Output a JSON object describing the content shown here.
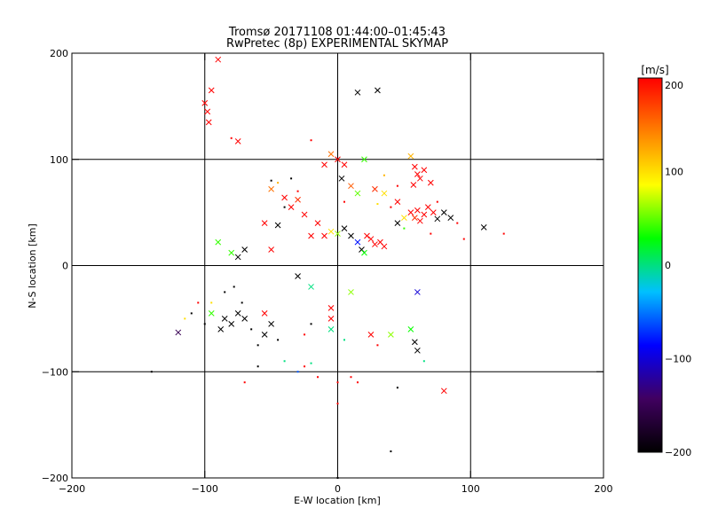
{
  "chart_data": {
    "type": "scatter",
    "title": "Tromsø 20171108 01:44:00–01:45:43",
    "subtitle": "RwPretec (8p) EXPERIMENTAL SKYMAP",
    "xlabel": "E-W location [km]",
    "ylabel": "N-S location [km]",
    "xlim": [
      -200,
      200
    ],
    "ylim": [
      -200,
      200
    ],
    "xticks": [
      -200,
      -100,
      0,
      100,
      200
    ],
    "yticks": [
      -200,
      -100,
      0,
      100,
      200
    ],
    "grid": true,
    "colorbar": {
      "title": "[m/s]",
      "range": [
        -200,
        200
      ],
      "ticks": [
        -200,
        -100,
        0,
        100,
        200
      ],
      "colors": [
        "#000000",
        "#400060",
        "#0000ff",
        "#00c0ff",
        "#00ff00",
        "#ffff00",
        "#ff8000",
        "#ff0000"
      ]
    },
    "series": [
      {
        "marker": "x",
        "points": [
          {
            "x": -90,
            "y": 194,
            "v": 200
          },
          {
            "x": -95,
            "y": 165,
            "v": 200
          },
          {
            "x": -100,
            "y": 153,
            "v": 200
          },
          {
            "x": -98,
            "y": 145,
            "v": 200
          },
          {
            "x": -97,
            "y": 135,
            "v": 200
          },
          {
            "x": -75,
            "y": 117,
            "v": 200
          },
          {
            "x": 15,
            "y": 163,
            "v": -200
          },
          {
            "x": 30,
            "y": 165,
            "v": -200
          },
          {
            "x": -5,
            "y": 105,
            "v": 150
          },
          {
            "x": 0,
            "y": 100,
            "v": 200
          },
          {
            "x": 5,
            "y": 95,
            "v": 200
          },
          {
            "x": 20,
            "y": 100,
            "v": 40
          },
          {
            "x": -10,
            "y": 95,
            "v": 200
          },
          {
            "x": 3,
            "y": 82,
            "v": -200
          },
          {
            "x": 10,
            "y": 75,
            "v": 160
          },
          {
            "x": 15,
            "y": 68,
            "v": 50
          },
          {
            "x": 28,
            "y": 72,
            "v": 180
          },
          {
            "x": 35,
            "y": 68,
            "v": 100
          },
          {
            "x": 55,
            "y": 103,
            "v": 120
          },
          {
            "x": 58,
            "y": 93,
            "v": 200
          },
          {
            "x": 60,
            "y": 86,
            "v": 200
          },
          {
            "x": 62,
            "y": 82,
            "v": 200
          },
          {
            "x": 65,
            "y": 90,
            "v": 200
          },
          {
            "x": 57,
            "y": 76,
            "v": 200
          },
          {
            "x": 70,
            "y": 78,
            "v": 200
          },
          {
            "x": 45,
            "y": 60,
            "v": 200
          },
          {
            "x": 55,
            "y": 50,
            "v": 200
          },
          {
            "x": 58,
            "y": 45,
            "v": 180
          },
          {
            "x": 60,
            "y": 52,
            "v": 200
          },
          {
            "x": 65,
            "y": 48,
            "v": 200
          },
          {
            "x": 68,
            "y": 55,
            "v": 200
          },
          {
            "x": 72,
            "y": 50,
            "v": 200
          },
          {
            "x": 62,
            "y": 42,
            "v": 200
          },
          {
            "x": 50,
            "y": 45,
            "v": 100
          },
          {
            "x": 45,
            "y": 40,
            "v": -200
          },
          {
            "x": 75,
            "y": 44,
            "v": -200
          },
          {
            "x": 80,
            "y": 50,
            "v": -200
          },
          {
            "x": 85,
            "y": 45,
            "v": -200
          },
          {
            "x": 110,
            "y": 36,
            "v": -200
          },
          {
            "x": -50,
            "y": 72,
            "v": 150
          },
          {
            "x": -40,
            "y": 64,
            "v": 200
          },
          {
            "x": -35,
            "y": 55,
            "v": 200
          },
          {
            "x": -30,
            "y": 62,
            "v": 180
          },
          {
            "x": -25,
            "y": 48,
            "v": 200
          },
          {
            "x": -45,
            "y": 38,
            "v": -200
          },
          {
            "x": -55,
            "y": 40,
            "v": 200
          },
          {
            "x": -15,
            "y": 40,
            "v": 200
          },
          {
            "x": -20,
            "y": 28,
            "v": 200
          },
          {
            "x": -10,
            "y": 28,
            "v": 200
          },
          {
            "x": -5,
            "y": 32,
            "v": 100
          },
          {
            "x": 0,
            "y": 30,
            "v": 60
          },
          {
            "x": 5,
            "y": 35,
            "v": -200
          },
          {
            "x": 10,
            "y": 28,
            "v": -200
          },
          {
            "x": 15,
            "y": 22,
            "v": -80
          },
          {
            "x": 18,
            "y": 15,
            "v": -200
          },
          {
            "x": 20,
            "y": 12,
            "v": 30
          },
          {
            "x": 25,
            "y": 25,
            "v": 200
          },
          {
            "x": 28,
            "y": 20,
            "v": 200
          },
          {
            "x": 32,
            "y": 22,
            "v": 200
          },
          {
            "x": 35,
            "y": 18,
            "v": 200
          },
          {
            "x": 22,
            "y": 28,
            "v": 200
          },
          {
            "x": -90,
            "y": 22,
            "v": 40
          },
          {
            "x": -80,
            "y": 12,
            "v": 40
          },
          {
            "x": -75,
            "y": 8,
            "v": -200
          },
          {
            "x": -70,
            "y": 15,
            "v": -200
          },
          {
            "x": -50,
            "y": 15,
            "v": 200
          },
          {
            "x": -30,
            "y": -10,
            "v": -200
          },
          {
            "x": -20,
            "y": -20,
            "v": 0
          },
          {
            "x": -5,
            "y": -40,
            "v": 200
          },
          {
            "x": -5,
            "y": -50,
            "v": 200
          },
          {
            "x": 10,
            "y": -25,
            "v": 60
          },
          {
            "x": 60,
            "y": -25,
            "v": -100
          },
          {
            "x": -80,
            "y": -55,
            "v": -200
          },
          {
            "x": -85,
            "y": -50,
            "v": -200
          },
          {
            "x": -75,
            "y": -45,
            "v": -200
          },
          {
            "x": -70,
            "y": -50,
            "v": -200
          },
          {
            "x": -88,
            "y": -60,
            "v": -200
          },
          {
            "x": -120,
            "y": -63,
            "v": -150
          },
          {
            "x": -95,
            "y": -45,
            "v": 40
          },
          {
            "x": -55,
            "y": -45,
            "v": 200
          },
          {
            "x": -50,
            "y": -55,
            "v": -200
          },
          {
            "x": -55,
            "y": -65,
            "v": -200
          },
          {
            "x": -5,
            "y": -60,
            "v": 0
          },
          {
            "x": 25,
            "y": -65,
            "v": 200
          },
          {
            "x": 40,
            "y": -65,
            "v": 60
          },
          {
            "x": 55,
            "y": -60,
            "v": 30
          },
          {
            "x": 58,
            "y": -72,
            "v": -200
          },
          {
            "x": 60,
            "y": -80,
            "v": -200
          },
          {
            "x": 80,
            "y": -118,
            "v": 200
          }
        ]
      },
      {
        "marker": "dot",
        "points": [
          {
            "x": -80,
            "y": 120,
            "v": 200
          },
          {
            "x": -20,
            "y": 118,
            "v": 200
          },
          {
            "x": -50,
            "y": 80,
            "v": -200
          },
          {
            "x": -45,
            "y": 78,
            "v": 120
          },
          {
            "x": -35,
            "y": 82,
            "v": -200
          },
          {
            "x": -30,
            "y": 70,
            "v": 200
          },
          {
            "x": -40,
            "y": 55,
            "v": -200
          },
          {
            "x": 5,
            "y": 60,
            "v": 200
          },
          {
            "x": 30,
            "y": 58,
            "v": 100
          },
          {
            "x": 40,
            "y": 55,
            "v": 200
          },
          {
            "x": 90,
            "y": 40,
            "v": 200
          },
          {
            "x": 95,
            "y": 25,
            "v": 200
          },
          {
            "x": 125,
            "y": 30,
            "v": 200
          },
          {
            "x": -110,
            "y": -45,
            "v": -200
          },
          {
            "x": -105,
            "y": -35,
            "v": 200
          },
          {
            "x": -115,
            "y": -50,
            "v": 100
          },
          {
            "x": -100,
            "y": -55,
            "v": -200
          },
          {
            "x": -95,
            "y": -35,
            "v": 100
          },
          {
            "x": -78,
            "y": -20,
            "v": -200
          },
          {
            "x": -85,
            "y": -25,
            "v": -200
          },
          {
            "x": -72,
            "y": -35,
            "v": -200
          },
          {
            "x": -65,
            "y": -60,
            "v": -200
          },
          {
            "x": -60,
            "y": -75,
            "v": -200
          },
          {
            "x": -45,
            "y": -70,
            "v": -200
          },
          {
            "x": -40,
            "y": -90,
            "v": 0
          },
          {
            "x": -30,
            "y": -100,
            "v": -60
          },
          {
            "x": -25,
            "y": -95,
            "v": 200
          },
          {
            "x": -20,
            "y": -92,
            "v": 0
          },
          {
            "x": -15,
            "y": -105,
            "v": 200
          },
          {
            "x": 0,
            "y": -110,
            "v": 200
          },
          {
            "x": 10,
            "y": -105,
            "v": 200
          },
          {
            "x": 15,
            "y": -110,
            "v": 200
          },
          {
            "x": 45,
            "y": -115,
            "v": -200
          },
          {
            "x": -140,
            "y": -100,
            "v": -200
          },
          {
            "x": -70,
            "y": -110,
            "v": 200
          },
          {
            "x": -60,
            "y": -95,
            "v": -200
          },
          {
            "x": 0,
            "y": -130,
            "v": 200
          },
          {
            "x": 40,
            "y": -175,
            "v": -200
          },
          {
            "x": 0,
            "y": -200,
            "v": -200
          },
          {
            "x": -25,
            "y": -65,
            "v": 200
          },
          {
            "x": -20,
            "y": -55,
            "v": -200
          },
          {
            "x": 5,
            "y": -70,
            "v": 0
          },
          {
            "x": 30,
            "y": -75,
            "v": 200
          },
          {
            "x": 65,
            "y": -90,
            "v": 0
          },
          {
            "x": 50,
            "y": 35,
            "v": 40
          },
          {
            "x": 70,
            "y": 30,
            "v": 200
          },
          {
            "x": 75,
            "y": 60,
            "v": 200
          },
          {
            "x": 45,
            "y": 75,
            "v": 200
          },
          {
            "x": 35,
            "y": 85,
            "v": 120
          }
        ]
      }
    ]
  }
}
